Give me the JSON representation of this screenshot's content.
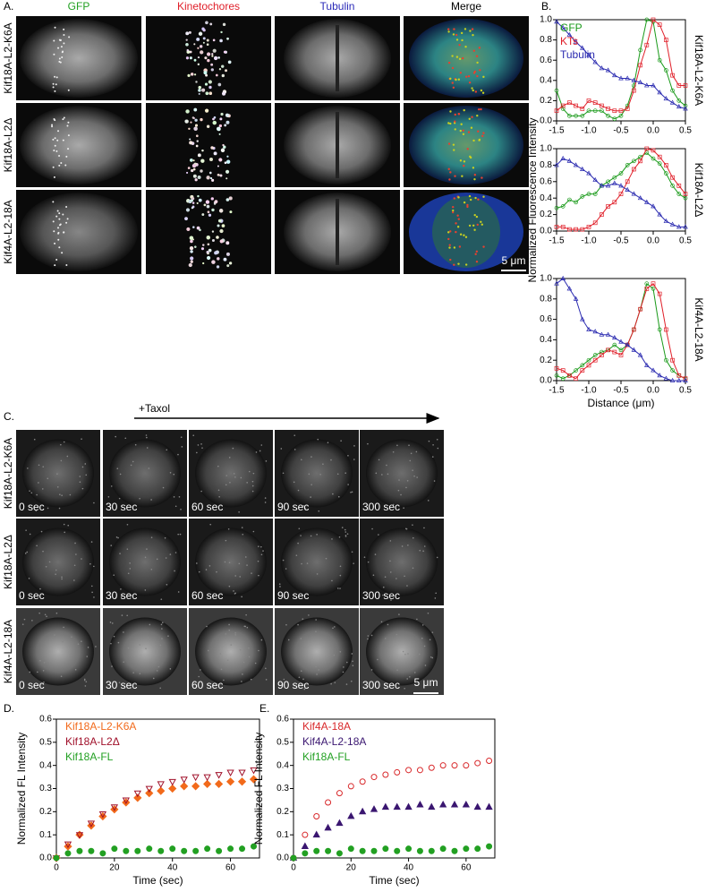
{
  "panel_labels": {
    "a": "A.",
    "b": "B.",
    "c": "C.",
    "d": "D.",
    "e": "E."
  },
  "panel_a": {
    "columns": [
      "GFP",
      "Kinetochores",
      "Tubulin",
      "Merge"
    ],
    "column_colors": [
      "#22a022",
      "#e0202a",
      "#2a2ab8",
      "#000000"
    ],
    "rows": [
      "Kif18A-L2-K6A",
      "Kif18A-L2Δ",
      "Kif4A-L2-18A"
    ],
    "scale_bar": "5 μm"
  },
  "panel_c": {
    "annotation": "+Taxol",
    "rows": [
      "Kif18A-L2-K6A",
      "Kif18A-L2Δ",
      "Kif4A-L2-18A"
    ],
    "times": [
      "0 sec",
      "30 sec",
      "60 sec",
      "90 sec",
      "300 sec"
    ],
    "scale_bar": "5 μm"
  },
  "chart_data": [
    {
      "type": "line",
      "title": "Kif18A-L2-K6A",
      "ylabel": "Normalized Fluorescence Intensity",
      "legend": "upper left",
      "x": [
        -1.5,
        -1.4,
        -1.3,
        -1.2,
        -1.1,
        -1.0,
        -0.9,
        -0.8,
        -0.7,
        -0.6,
        -0.5,
        -0.4,
        -0.3,
        -0.2,
        -0.1,
        0,
        0.1,
        0.2,
        0.3,
        0.4,
        0.5
      ],
      "xlim": [
        -1.5,
        0.5
      ],
      "xticks": [
        -1.5,
        {
          "value": -1,
          "label": "-1.0"
        },
        -0.5,
        {
          "value": 0,
          "label": "0.0"
        },
        0.5
      ],
      "ylim": [
        0,
        1
      ],
      "yticks": [
        {
          "value": 0,
          "label": "0.0"
        },
        0.2,
        0.4,
        0.6,
        0.8,
        {
          "value": 1,
          "label": "1.0"
        }
      ],
      "series": [
        {
          "name": "GFP",
          "color": "#1a9a1a",
          "marker": "circle",
          "values": [
            0.3,
            0.12,
            0.05,
            0.05,
            0.05,
            0.1,
            0.1,
            0.1,
            0.05,
            0.02,
            0.05,
            0.15,
            0.35,
            0.7,
            1.0,
            0.98,
            0.6,
            0.5,
            0.3,
            0.2,
            0.15
          ]
        },
        {
          "name": "KTs",
          "color": "#e0202a",
          "marker": "square",
          "values": [
            0.1,
            0.15,
            0.18,
            0.15,
            0.12,
            0.2,
            0.18,
            0.15,
            0.12,
            0.1,
            0.1,
            0.12,
            0.3,
            0.55,
            0.75,
            1.0,
            0.95,
            0.8,
            0.45,
            0.35,
            0.35
          ]
        },
        {
          "name": "Tubulin",
          "color": "#2a2ab0",
          "marker": "triangle",
          "values": [
            0.98,
            0.92,
            0.85,
            0.78,
            0.72,
            0.65,
            0.58,
            0.52,
            0.5,
            0.45,
            0.42,
            0.42,
            0.4,
            0.38,
            0.35,
            0.35,
            0.28,
            0.22,
            0.18,
            0.14,
            0.12
          ]
        }
      ]
    },
    {
      "type": "line",
      "title": "Kif18A-L2Δ",
      "x": [
        -1.5,
        -1.4,
        -1.3,
        -1.2,
        -1.1,
        -1.0,
        -0.9,
        -0.8,
        -0.7,
        -0.6,
        -0.5,
        -0.4,
        -0.3,
        -0.2,
        -0.1,
        0,
        0.1,
        0.2,
        0.3,
        0.4,
        0.5
      ],
      "xlim": [
        -1.5,
        0.5
      ],
      "xticks": [
        -1.5,
        {
          "value": -1,
          "label": "-1.0"
        },
        -0.5,
        {
          "value": 0,
          "label": "0.0"
        },
        0.5
      ],
      "ylim": [
        0,
        1
      ],
      "yticks": [
        {
          "value": 0,
          "label": "0.0"
        },
        0.2,
        0.4,
        0.6,
        0.8,
        {
          "value": 1,
          "label": "1.0"
        }
      ],
      "series": [
        {
          "color": "#1a9a1a",
          "marker": "circle",
          "values": [
            0.28,
            0.3,
            0.38,
            0.35,
            0.42,
            0.45,
            0.45,
            0.55,
            0.6,
            0.65,
            0.7,
            0.8,
            0.85,
            0.9,
            0.95,
            0.88,
            0.82,
            0.7,
            0.55,
            0.45,
            0.4
          ]
        },
        {
          "color": "#e0202a",
          "marker": "square",
          "values": [
            0.05,
            0.05,
            0.02,
            0.02,
            0.02,
            0.05,
            0.1,
            0.2,
            0.3,
            0.35,
            0.45,
            0.6,
            0.75,
            0.85,
            1.0,
            0.98,
            0.9,
            0.8,
            0.65,
            0.55,
            0.45
          ]
        },
        {
          "color": "#2a2ab0",
          "marker": "triangle",
          "values": [
            0.8,
            0.88,
            0.85,
            0.8,
            0.75,
            0.7,
            0.62,
            0.55,
            0.55,
            0.58,
            0.55,
            0.5,
            0.45,
            0.4,
            0.35,
            0.3,
            0.2,
            0.12,
            0.08,
            0.05,
            0.05
          ]
        }
      ]
    },
    {
      "type": "line",
      "title": "Kif4A-L2-18A",
      "xlabel": "Distance (μm)",
      "x": [
        -1.5,
        -1.4,
        -1.3,
        -1.2,
        -1.1,
        -1.0,
        -0.9,
        -0.8,
        -0.7,
        -0.6,
        -0.5,
        -0.4,
        -0.3,
        -0.2,
        -0.1,
        0,
        0.1,
        0.2,
        0.3,
        0.4,
        0.5
      ],
      "xlim": [
        -1.5,
        0.5
      ],
      "xticks": [
        -1.5,
        {
          "value": -1,
          "label": "-1.0"
        },
        -0.5,
        {
          "value": 0,
          "label": "0.0"
        },
        0.5
      ],
      "ylim": [
        0,
        1
      ],
      "yticks": [
        {
          "value": 0,
          "label": "0.0"
        },
        0.2,
        0.4,
        0.6,
        0.8,
        {
          "value": 1,
          "label": "1.0"
        }
      ],
      "series": [
        {
          "color": "#1a9a1a",
          "marker": "circle",
          "values": [
            0.05,
            0.02,
            0.05,
            0.1,
            0.15,
            0.2,
            0.25,
            0.28,
            0.3,
            0.35,
            0.3,
            0.35,
            0.5,
            0.7,
            0.95,
            0.9,
            0.5,
            0.2,
            0.1,
            0.05,
            0.02
          ]
        },
        {
          "color": "#e0202a",
          "marker": "square",
          "values": [
            0.12,
            0.1,
            0.05,
            0.02,
            0.1,
            0.15,
            0.2,
            0.25,
            0.3,
            0.28,
            0.25,
            0.35,
            0.5,
            0.7,
            0.9,
            0.95,
            0.85,
            0.5,
            0.2,
            0.05,
            0.02
          ]
        },
        {
          "color": "#2a2ab0",
          "marker": "triangle",
          "values": [
            0.95,
            1.0,
            0.9,
            0.8,
            0.6,
            0.5,
            0.48,
            0.45,
            0.45,
            0.42,
            0.38,
            0.35,
            0.3,
            0.25,
            0.15,
            0.1,
            0.05,
            0.02,
            0,
            0,
            0
          ]
        }
      ]
    },
    {
      "type": "scatter",
      "ylabel": "Normalized FL Intensity",
      "xlabel": "Time (sec)",
      "legend": "upper left",
      "x": [
        0,
        4,
        8,
        12,
        16,
        20,
        24,
        28,
        32,
        36,
        40,
        44,
        48,
        52,
        56,
        60,
        64,
        68
      ],
      "xlim": [
        0,
        70
      ],
      "xticks": [
        0,
        20,
        40,
        60
      ],
      "ylim": [
        0,
        0.6
      ],
      "yticks": [
        {
          "value": 0,
          "label": "0.0"
        },
        0.1,
        0.2,
        0.3,
        0.4,
        0.5,
        0.6
      ],
      "series": [
        {
          "name": "Kif18A-L2-K6A",
          "color": "#f26a1b",
          "marker": "diamond",
          "filled": true,
          "values": [
            0,
            0.05,
            0.1,
            0.14,
            0.18,
            0.21,
            0.24,
            0.26,
            0.28,
            0.29,
            0.3,
            0.31,
            0.31,
            0.32,
            0.32,
            0.33,
            0.33,
            0.34
          ]
        },
        {
          "name": "Kif18A-L2Δ",
          "color": "#a0102a",
          "marker": "triangle-down",
          "filled": false,
          "values": [
            0,
            0.06,
            0.1,
            0.15,
            0.19,
            0.22,
            0.25,
            0.28,
            0.3,
            0.32,
            0.33,
            0.34,
            0.35,
            0.35,
            0.36,
            0.37,
            0.37,
            0.38
          ]
        },
        {
          "name": "Kif18A-FL",
          "color": "#22a022",
          "marker": "circle",
          "filled": true,
          "values": [
            0,
            0.02,
            0.03,
            0.03,
            0.02,
            0.04,
            0.03,
            0.03,
            0.04,
            0.03,
            0.04,
            0.03,
            0.03,
            0.04,
            0.03,
            0.04,
            0.04,
            0.05
          ]
        }
      ]
    },
    {
      "type": "scatter",
      "ylabel": "Normalized FL Intensity",
      "xlabel": "Time (sec)",
      "legend": "upper left",
      "x": [
        0,
        4,
        8,
        12,
        16,
        20,
        24,
        28,
        32,
        36,
        40,
        44,
        48,
        52,
        56,
        60,
        64,
        68
      ],
      "xlim": [
        0,
        70
      ],
      "xticks": [
        0,
        20,
        40,
        60
      ],
      "ylim": [
        0,
        0.6
      ],
      "yticks": [
        {
          "value": 0,
          "label": "0.0"
        },
        0.1,
        0.2,
        0.3,
        0.4,
        0.5,
        0.6
      ],
      "series": [
        {
          "name": "Kif4A-18A",
          "color": "#d8282a",
          "marker": "circle",
          "filled": false,
          "values": [
            0,
            0.1,
            0.18,
            0.24,
            0.28,
            0.31,
            0.33,
            0.35,
            0.36,
            0.37,
            0.38,
            0.38,
            0.39,
            0.4,
            0.4,
            0.4,
            0.41,
            0.42
          ]
        },
        {
          "name": "Kif4A-L2-18A",
          "color": "#3a1670",
          "marker": "triangle",
          "filled": true,
          "values": [
            0,
            0.05,
            0.1,
            0.13,
            0.15,
            0.18,
            0.2,
            0.21,
            0.22,
            0.22,
            0.22,
            0.23,
            0.22,
            0.23,
            0.23,
            0.23,
            0.22,
            0.22
          ]
        },
        {
          "name": "Kif18A-FL",
          "color": "#22a022",
          "marker": "circle",
          "filled": true,
          "values": [
            0,
            0.02,
            0.03,
            0.03,
            0.02,
            0.04,
            0.03,
            0.03,
            0.04,
            0.03,
            0.04,
            0.03,
            0.03,
            0.04,
            0.03,
            0.04,
            0.04,
            0.05
          ]
        }
      ]
    }
  ]
}
